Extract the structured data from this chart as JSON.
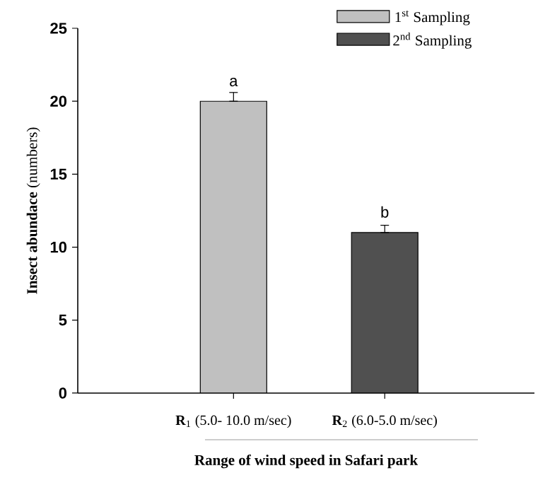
{
  "chart_data": {
    "type": "bar",
    "categories": [
      "**R**$_{1}$ (5.0- 10.0 m/sec)",
      "**R**$_{2}$ (6.0-5.0 m/sec)"
    ],
    "series": [
      {
        "name": "1$^{st}$  Sampling",
        "color": "#c0c0c0",
        "values": [
          20,
          null
        ],
        "errors": [
          [
            20,
            20.6
          ],
          null
        ]
      },
      {
        "name": "2$^{nd}$ Sampling",
        "color": "#505050",
        "values": [
          null,
          11
        ],
        "errors": [
          null,
          [
            11,
            11.5
          ]
        ]
      }
    ],
    "xlabel": "Range of wind speed in Safari park",
    "ylabel": "**Insect abundace** (numbers)",
    "ylim": [
      0,
      25
    ],
    "yticks": [
      0,
      5,
      10,
      15,
      20,
      25
    ],
    "legend": "top right",
    "annotations": [
      {
        "text": "a",
        "x": "**R**$_{1}$ (5.0- 10.0 m/sec)",
        "y": 20
      },
      {
        "text": "b",
        "x": "**R**$_{2}$ (6.0-5.0 m/sec)",
        "y": 11
      }
    ]
  }
}
